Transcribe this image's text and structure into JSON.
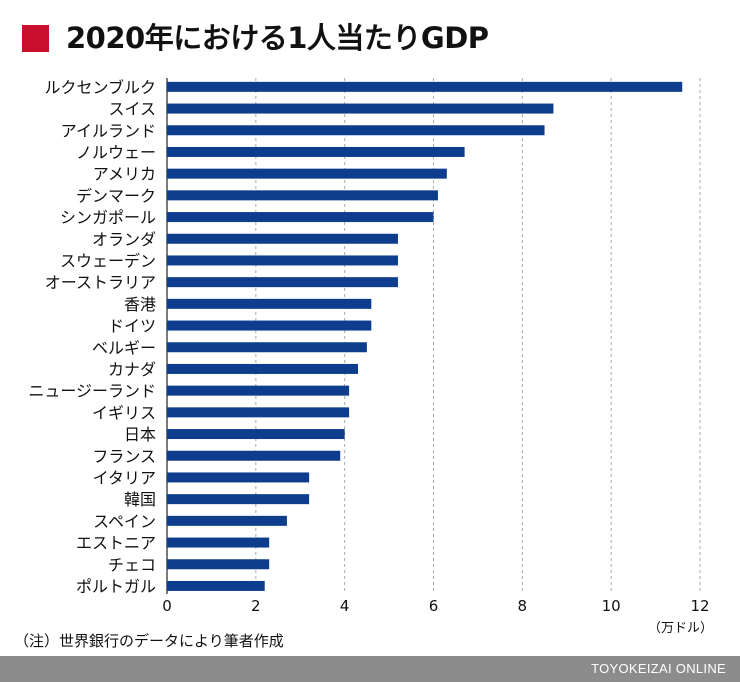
{
  "title": "2020年における1人当たりGDP",
  "note": "（注）世界銀行のデータにより筆者作成",
  "footer": {
    "brand": "TOYOKEIZAI ONLINE"
  },
  "colors": {
    "bar": "#0e3d8e",
    "accent": "#c8102e",
    "footer": "#8c8c8c"
  },
  "chart_data": {
    "type": "bar",
    "orientation": "horizontal",
    "title": "2020年における1人当たりGDP",
    "unit": "（万ドル）",
    "xlim": [
      0,
      12
    ],
    "xticks": [
      0,
      2,
      4,
      6,
      8,
      10,
      12
    ],
    "grid": true,
    "categories": [
      "ルクセンブルク",
      "スイス",
      "アイルランド",
      "ノルウェー",
      "アメリカ",
      "デンマーク",
      "シンガポール",
      "オランダ",
      "スウェーデン",
      "オーストラリア",
      "香港",
      "ドイツ",
      "ベルギー",
      "カナダ",
      "ニュージーランド",
      "イギリス",
      "日本",
      "フランス",
      "イタリア",
      "韓国",
      "スペイン",
      "エストニア",
      "チェコ",
      "ポルトガル"
    ],
    "values": [
      11.6,
      8.7,
      8.5,
      6.7,
      6.3,
      6.1,
      6.0,
      5.2,
      5.2,
      5.2,
      4.6,
      4.6,
      4.5,
      4.3,
      4.1,
      4.1,
      4.0,
      3.9,
      3.2,
      3.2,
      2.7,
      2.3,
      2.3,
      2.2
    ]
  }
}
